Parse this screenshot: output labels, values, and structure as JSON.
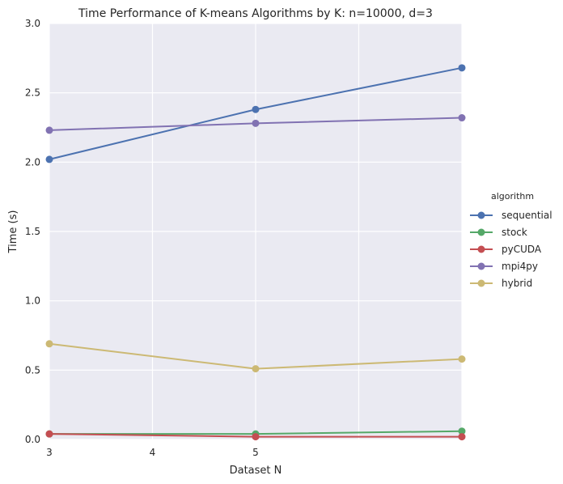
{
  "chart_data": {
    "type": "line",
    "title": "Time Performance of K-means Algorithms by K: n=10000, d=3",
    "xlabel": "Dataset N",
    "ylabel": "Time (s)",
    "xlim": [
      3,
      7
    ],
    "ylim": [
      0,
      3
    ],
    "x_ticks": [
      3,
      4,
      5
    ],
    "x_tick_labels": [
      "3",
      "4",
      "5"
    ],
    "x_gridlines": [
      3,
      4,
      5,
      6,
      7
    ],
    "y_ticks": [
      0,
      0.5,
      1.0,
      1.5,
      2.0,
      2.5,
      3.0
    ],
    "y_tick_labels": [
      "0.0",
      "0.5",
      "1.0",
      "1.5",
      "2.0",
      "2.5",
      "3.0"
    ],
    "grid": true,
    "background": "#EAEAF2",
    "x": [
      3,
      5,
      7
    ],
    "legend": {
      "title": "algorithm",
      "placement": "right"
    },
    "series": [
      {
        "name": "sequential",
        "values": [
          2.02,
          2.38,
          2.68
        ],
        "color": "#4C72B0"
      },
      {
        "name": "stock",
        "values": [
          0.04,
          0.04,
          0.06
        ],
        "color": "#55A868"
      },
      {
        "name": "pyCUDA",
        "values": [
          0.04,
          0.02,
          0.02
        ],
        "color": "#C44E52"
      },
      {
        "name": "mpi4py",
        "values": [
          2.23,
          2.28,
          2.32
        ],
        "color": "#8172B2"
      },
      {
        "name": "hybrid",
        "values": [
          0.69,
          0.51,
          0.58
        ],
        "color": "#CCB974"
      }
    ]
  }
}
